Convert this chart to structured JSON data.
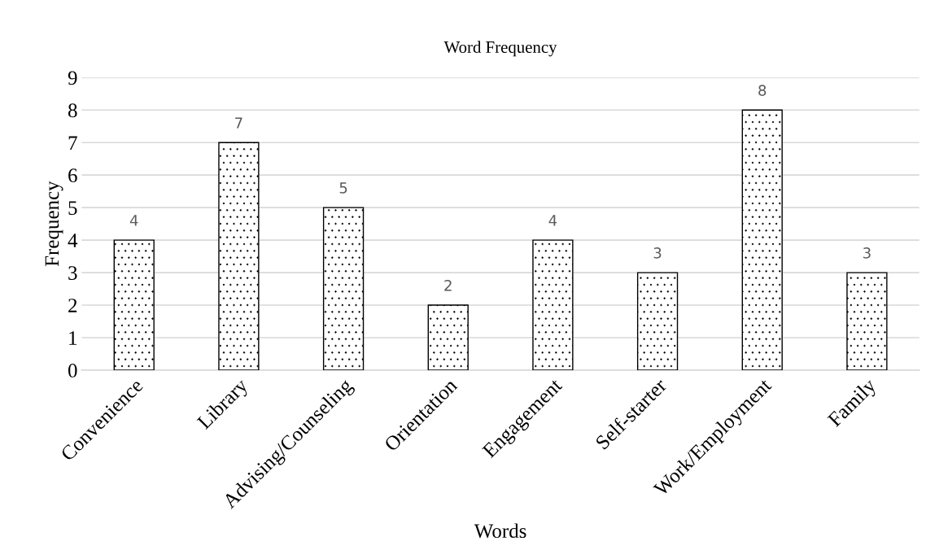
{
  "chart_data": {
    "type": "bar",
    "title": "Word Frequency",
    "xlabel": "Words",
    "ylabel": "Frequency",
    "categories": [
      "Convenience",
      "Library",
      "Advising/Counseling",
      "Orientation",
      "Engagement",
      "Self-starter",
      "Work/Employment",
      "Family"
    ],
    "values": [
      4,
      7,
      5,
      2,
      4,
      3,
      8,
      3
    ],
    "color": "#000000",
    "ylim": [
      0,
      9
    ],
    "yticks": [
      0,
      1,
      2,
      3,
      4,
      5,
      6,
      7,
      8,
      9
    ],
    "grid": "y",
    "data_labels": true
  }
}
